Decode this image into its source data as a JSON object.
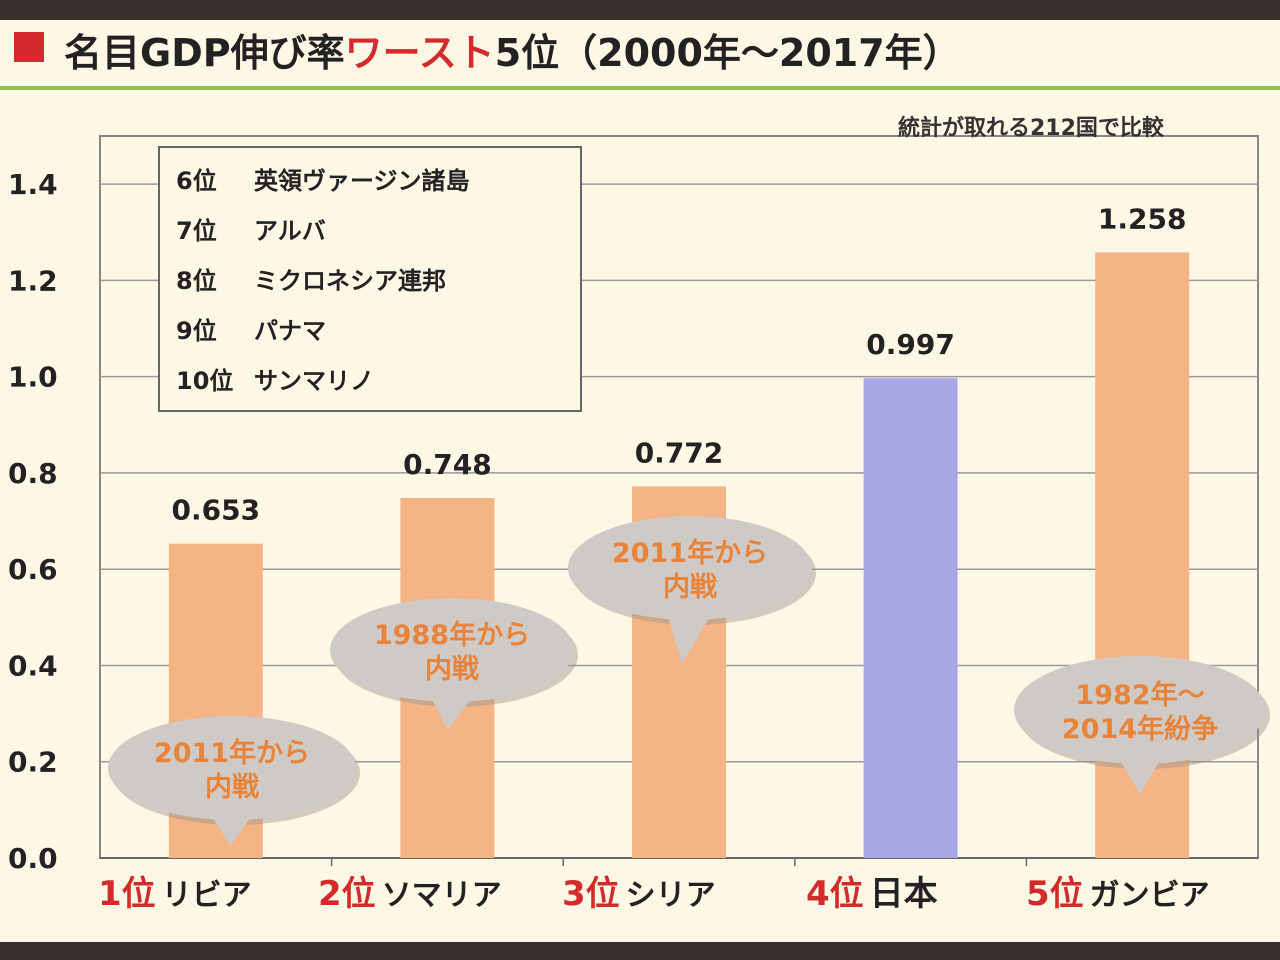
{
  "title": {
    "prefix": "名目GDP伸び率",
    "accent": "ワースト",
    "suffix": "5位（2000年～2017年）"
  },
  "note": "統計が取れる212国で比較",
  "legend": [
    {
      "rank": "6位",
      "name": "英領ヴァージン諸島"
    },
    {
      "rank": "7位",
      "name": "アルバ"
    },
    {
      "rank": "8位",
      "name": "ミクロネシア連邦"
    },
    {
      "rank": "9位",
      "name": "パナマ"
    },
    {
      "rank": "10位",
      "name": "サンマリノ"
    }
  ],
  "colors": {
    "bar": "#f5b486",
    "highlight_bar": "#a9a6e6",
    "accent": "#d32b2b",
    "bubble": "#cfcac6",
    "bubble_text": "#e8843a"
  },
  "chart_data": {
    "type": "bar",
    "categories": [
      {
        "rank": "1位",
        "name": "リビア"
      },
      {
        "rank": "2位",
        "name": "ソマリア"
      },
      {
        "rank": "3位",
        "name": "シリア"
      },
      {
        "rank": "4位",
        "name": "日本"
      },
      {
        "rank": "5位",
        "name": "ガンビア"
      }
    ],
    "values": [
      0.653,
      0.748,
      0.772,
      0.997,
      1.258
    ],
    "value_labels": [
      "0.653",
      "0.748",
      "0.772",
      "0.997",
      "1.258"
    ],
    "highlight_index": 3,
    "yticks": [
      "0.0",
      "0.2",
      "0.4",
      "0.6",
      "0.8",
      "1.0",
      "1.2",
      "1.4"
    ],
    "ylim": [
      0,
      1.4
    ],
    "grid": true,
    "annotations": [
      {
        "index": 0,
        "lines": [
          "2011年から",
          "内戦"
        ]
      },
      {
        "index": 1,
        "lines": [
          "1988年から",
          "内戦"
        ]
      },
      {
        "index": 2,
        "lines": [
          "2011年から",
          "内戦"
        ]
      },
      {
        "index": 4,
        "lines": [
          "1982年～",
          "2014年紛争"
        ]
      }
    ]
  }
}
